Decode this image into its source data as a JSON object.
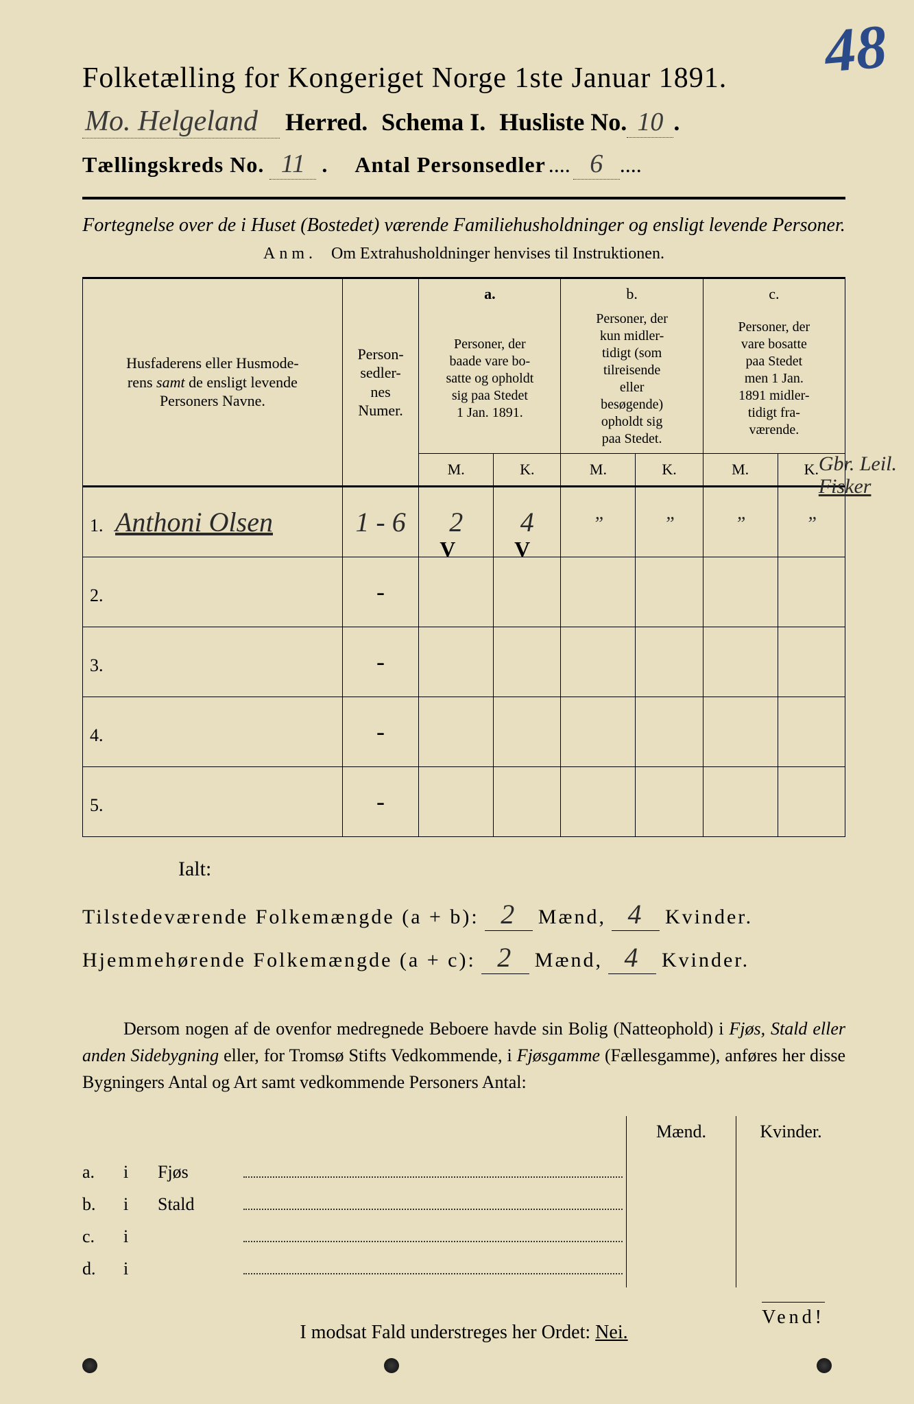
{
  "page_number_handwritten": "48",
  "title": "Folketælling for Kongeriget Norge 1ste Januar 1891.",
  "header": {
    "herred_value": "Mo. Helgeland",
    "herred_label": "Herred.",
    "schema_label": "Schema I.",
    "husliste_label": "Husliste No.",
    "husliste_value": "10",
    "kreds_label": "Tællingskreds No.",
    "kreds_value": "11",
    "personsedler_label": "Antal Personsedler",
    "personsedler_value": "6"
  },
  "subtitle": "Fortegnelse over de i Huset (Bostedet) værende Familiehusholdninger og ensligt levende Personer.",
  "anm_label": "Anm.",
  "anm_text": "Om Extrahusholdninger henvises til Instruktionen.",
  "table": {
    "col_name_header": "Husfaderens eller Husmoderens samt de ensligt levende Personers Navne.",
    "col_num_header": "Person-sedler-nes Numer.",
    "col_a_label": "a.",
    "col_a_header": "Personer, der baade vare bosatte og opholdt sig paa Stedet 1 Jan. 1891.",
    "col_b_label": "b.",
    "col_b_header": "Personer, der kun midlertidigt (som tilreisende eller besøgende) opholdt sig paa Stedet.",
    "col_c_label": "c.",
    "col_c_header": "Personer, der vare bosatte paa Stedet men 1 Jan. 1891 midlertidigt fraværende.",
    "m_label": "M.",
    "k_label": "K.",
    "rows": [
      {
        "num": "1.",
        "name": "Anthoni Olsen",
        "sedler": "1 - 6",
        "a_m": "2",
        "a_k": "4",
        "b_m": "”",
        "b_k": "”",
        "c_m": "”",
        "c_k": "”"
      },
      {
        "num": "2.",
        "name": "",
        "sedler": "-",
        "a_m": "",
        "a_k": "",
        "b_m": "",
        "b_k": "",
        "c_m": "",
        "c_k": ""
      },
      {
        "num": "3.",
        "name": "",
        "sedler": "-",
        "a_m": "",
        "a_k": "",
        "b_m": "",
        "b_k": "",
        "c_m": "",
        "c_k": ""
      },
      {
        "num": "4.",
        "name": "",
        "sedler": "-",
        "a_m": "",
        "a_k": "",
        "b_m": "",
        "b_k": "",
        "c_m": "",
        "c_k": ""
      },
      {
        "num": "5.",
        "name": "",
        "sedler": "-",
        "a_m": "",
        "a_k": "",
        "b_m": "",
        "b_k": "",
        "c_m": "",
        "c_k": ""
      }
    ],
    "checkmarks": {
      "a_m": "V",
      "a_k": "V"
    }
  },
  "margin_note_line1": "Gbr. Leil.",
  "margin_note_line2": "Fisker",
  "ialt": {
    "label": "Ialt:",
    "row1_label": "Tilstedeværende Folkemængde (a + b):",
    "row1_m": "2",
    "row1_k": "4",
    "row2_label": "Hjemmehørende Folkemængde (a + c):",
    "row2_m": "2",
    "row2_k": "4",
    "maend": "Mænd,",
    "kvinder": "Kvinder."
  },
  "paragraph": "Dersom nogen af de ovenfor medregnede Beboere havde sin Bolig (Natteophold) i Fjøs, Stald eller anden Sidebygning eller, for Tromsø Stifts Vedkommende, i Fjøsgamme (Fællesgamme), anføres her disse Bygningers Antal og Art samt vedkommende Personers Antal:",
  "sidebuild": {
    "maend": "Mænd.",
    "kvinder": "Kvinder.",
    "rows": [
      {
        "lbl": "a.",
        "i": "i",
        "type": "Fjøs"
      },
      {
        "lbl": "b.",
        "i": "i",
        "type": "Stald"
      },
      {
        "lbl": "c.",
        "i": "i",
        "type": ""
      },
      {
        "lbl": "d.",
        "i": "i",
        "type": ""
      }
    ]
  },
  "modsat": "I modsat Fald understreges her Ordet:",
  "nej": "Nei.",
  "vend": "Vend!"
}
